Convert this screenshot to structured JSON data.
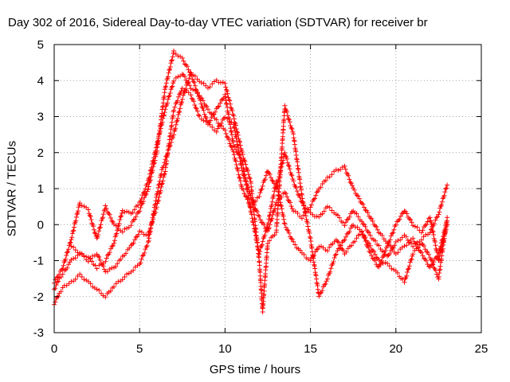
{
  "chart_data": {
    "type": "scatter",
    "title": "Day 302 of 2016, Sidereal Day-to-day VTEC variation (SDTVAR) for receiver br",
    "xlabel": "GPS time / hours",
    "ylabel": "SDTVAR / TECUs",
    "xlim": [
      0,
      25
    ],
    "ylim": [
      -3,
      5
    ],
    "x_ticks": [
      "0",
      "5",
      "10",
      "15",
      "20",
      "25"
    ],
    "y_ticks": [
      "-3",
      "-2",
      "-1",
      "0",
      "1",
      "2",
      "3",
      "4",
      "5"
    ],
    "grid": true,
    "marker": "plus",
    "color": "#ff0000",
    "series": [
      {
        "points": [
          [
            0,
            -1.8
          ],
          [
            0.3,
            -1.5
          ],
          [
            0.6,
            -1.3
          ],
          [
            1.0,
            -1.0
          ],
          [
            1.5,
            -0.8
          ],
          [
            2.0,
            -0.9
          ],
          [
            2.5,
            -1.2
          ],
          [
            3.0,
            -1.0
          ],
          [
            3.5,
            -0.5
          ],
          [
            4.0,
            0.4
          ],
          [
            4.5,
            0.3
          ],
          [
            5.0,
            0.6
          ],
          [
            5.5,
            1.2
          ],
          [
            6.0,
            2.2
          ],
          [
            6.5,
            3.2
          ],
          [
            7.0,
            4.0
          ],
          [
            7.5,
            4.2
          ],
          [
            8.0,
            3.8
          ],
          [
            8.5,
            3.6
          ],
          [
            9.0,
            3.2
          ],
          [
            9.5,
            2.9
          ],
          [
            10.0,
            2.6
          ],
          [
            10.5,
            2.0
          ],
          [
            11.0,
            1.0
          ],
          [
            11.5,
            0.5
          ],
          [
            12.0,
            0.8
          ],
          [
            12.5,
            1.5
          ],
          [
            13.0,
            1.0
          ],
          [
            13.5,
            2.0
          ],
          [
            14.0,
            1.2
          ],
          [
            14.5,
            0.6
          ],
          [
            15.0,
            0.3
          ],
          [
            15.5,
            0.2
          ],
          [
            16.0,
            0.5
          ],
          [
            16.5,
            0.3
          ],
          [
            17.0,
            0.0
          ],
          [
            17.5,
            0.4
          ],
          [
            18.0,
            0.1
          ],
          [
            18.5,
            -0.3
          ],
          [
            19.0,
            -0.6
          ],
          [
            19.5,
            -0.9
          ],
          [
            20.0,
            -0.5
          ],
          [
            20.5,
            -0.3
          ],
          [
            21.0,
            -0.6
          ],
          [
            21.5,
            -0.4
          ],
          [
            22.0,
            -0.2
          ],
          [
            22.5,
            0.3
          ],
          [
            23.0,
            1.1
          ]
        ]
      },
      {
        "points": [
          [
            0,
            -2.2
          ],
          [
            0.3,
            -1.9
          ],
          [
            0.6,
            -1.7
          ],
          [
            1.0,
            -1.6
          ],
          [
            1.5,
            -1.4
          ],
          [
            2.0,
            -1.6
          ],
          [
            2.5,
            -1.8
          ],
          [
            3.0,
            -2.0
          ],
          [
            3.5,
            -1.7
          ],
          [
            4.0,
            -1.5
          ],
          [
            4.5,
            -1.3
          ],
          [
            5.0,
            -1.1
          ],
          [
            5.5,
            -0.5
          ],
          [
            6.0,
            0.8
          ],
          [
            6.3,
            1.5
          ],
          [
            6.5,
            1.8
          ],
          [
            7.0,
            2.5
          ],
          [
            7.5,
            3.5
          ],
          [
            8.0,
            4.2
          ],
          [
            8.5,
            4.0
          ],
          [
            9.0,
            3.8
          ],
          [
            9.5,
            4.0
          ],
          [
            10.0,
            3.9
          ],
          [
            10.5,
            3.0
          ],
          [
            11.0,
            2.0
          ],
          [
            11.5,
            1.2
          ],
          [
            12.0,
            -1.0
          ],
          [
            12.2,
            -2.4
          ],
          [
            12.5,
            -0.5
          ],
          [
            13.0,
            -0.2
          ],
          [
            13.5,
            3.3
          ],
          [
            14.0,
            2.5
          ],
          [
            14.5,
            0.8
          ],
          [
            15.0,
            -0.4
          ],
          [
            15.5,
            -2.0
          ],
          [
            16.0,
            -1.5
          ],
          [
            16.5,
            -0.8
          ],
          [
            17.0,
            -0.4
          ],
          [
            17.5,
            0.0
          ],
          [
            18.0,
            -0.2
          ],
          [
            18.5,
            -0.6
          ],
          [
            19.0,
            -1.0
          ],
          [
            19.5,
            -1.1
          ],
          [
            20.0,
            -1.3
          ],
          [
            20.5,
            -1.6
          ],
          [
            21.0,
            -0.8
          ],
          [
            21.5,
            -0.5
          ],
          [
            22.0,
            -0.9
          ],
          [
            22.5,
            -1.5
          ],
          [
            23.0,
            0.2
          ]
        ]
      },
      {
        "points": [
          [
            0,
            -1.6
          ],
          [
            0.5,
            -1.2
          ],
          [
            1.0,
            -0.4
          ],
          [
            1.5,
            0.6
          ],
          [
            2.0,
            0.4
          ],
          [
            2.5,
            -0.4
          ],
          [
            3.0,
            0.5
          ],
          [
            3.5,
            0.0
          ],
          [
            4.0,
            -0.2
          ],
          [
            4.5,
            0.0
          ],
          [
            5.0,
            0.4
          ],
          [
            5.5,
            1.0
          ],
          [
            6.0,
            2.0
          ],
          [
            6.5,
            3.8
          ],
          [
            7.0,
            4.8
          ],
          [
            7.5,
            4.6
          ],
          [
            8.0,
            4.2
          ],
          [
            8.5,
            3.5
          ],
          [
            9.0,
            2.8
          ],
          [
            9.5,
            2.6
          ],
          [
            10.0,
            3.0
          ],
          [
            10.5,
            2.8
          ],
          [
            11.0,
            1.5
          ],
          [
            11.5,
            0.8
          ],
          [
            12.0,
            0.2
          ],
          [
            12.5,
            -0.2
          ],
          [
            13.0,
            0.6
          ],
          [
            13.5,
            0.9
          ],
          [
            14.0,
            0.4
          ],
          [
            14.5,
            0.2
          ],
          [
            15.0,
            0.5
          ],
          [
            15.5,
            1.0
          ],
          [
            16.0,
            1.3
          ],
          [
            16.5,
            1.5
          ],
          [
            17.0,
            1.6
          ],
          [
            17.5,
            1.0
          ],
          [
            18.0,
            0.6
          ],
          [
            18.5,
            0.2
          ],
          [
            19.0,
            -0.2
          ],
          [
            19.5,
            -0.5
          ],
          [
            20.0,
            -0.8
          ],
          [
            20.5,
            -0.6
          ],
          [
            21.0,
            -0.4
          ],
          [
            21.5,
            -0.8
          ],
          [
            22.0,
            -1.2
          ],
          [
            22.5,
            -0.8
          ],
          [
            23.0,
            0.1
          ]
        ]
      },
      {
        "points": [
          [
            1.0,
            -0.6
          ],
          [
            1.5,
            -0.8
          ],
          [
            2.0,
            -1.0
          ],
          [
            2.5,
            -0.8
          ],
          [
            3.0,
            -1.3
          ],
          [
            3.5,
            -1.2
          ],
          [
            4.0,
            -0.9
          ],
          [
            4.5,
            -0.6
          ],
          [
            5.0,
            -0.2
          ],
          [
            5.5,
            -0.3
          ],
          [
            6.0,
            0.5
          ],
          [
            6.5,
            1.5
          ],
          [
            7.0,
            3.2
          ],
          [
            7.5,
            3.8
          ],
          [
            8.0,
            3.6
          ],
          [
            8.5,
            3.0
          ],
          [
            9.0,
            2.8
          ],
          [
            9.5,
            3.2
          ],
          [
            10.0,
            3.6
          ],
          [
            10.5,
            2.2
          ],
          [
            11.0,
            1.8
          ],
          [
            11.5,
            0.4
          ],
          [
            12.0,
            -0.8
          ],
          [
            12.5,
            0.0
          ],
          [
            13.0,
            1.2
          ],
          [
            13.5,
            0.0
          ],
          [
            14.0,
            -0.5
          ],
          [
            14.5,
            -0.8
          ],
          [
            15.0,
            -1.0
          ],
          [
            15.5,
            -0.6
          ],
          [
            16.0,
            -0.7
          ],
          [
            16.5,
            -0.4
          ],
          [
            17.0,
            -0.8
          ],
          [
            17.5,
            -0.5
          ],
          [
            18.0,
            -0.2
          ],
          [
            18.5,
            -0.8
          ],
          [
            19.0,
            -1.2
          ],
          [
            19.5,
            -0.6
          ],
          [
            20.0,
            0.0
          ],
          [
            20.5,
            0.4
          ],
          [
            21.0,
            0.0
          ],
          [
            21.5,
            -0.2
          ],
          [
            22.0,
            0.2
          ],
          [
            22.5,
            -1.0
          ],
          [
            23.0,
            0.0
          ]
        ]
      }
    ]
  }
}
